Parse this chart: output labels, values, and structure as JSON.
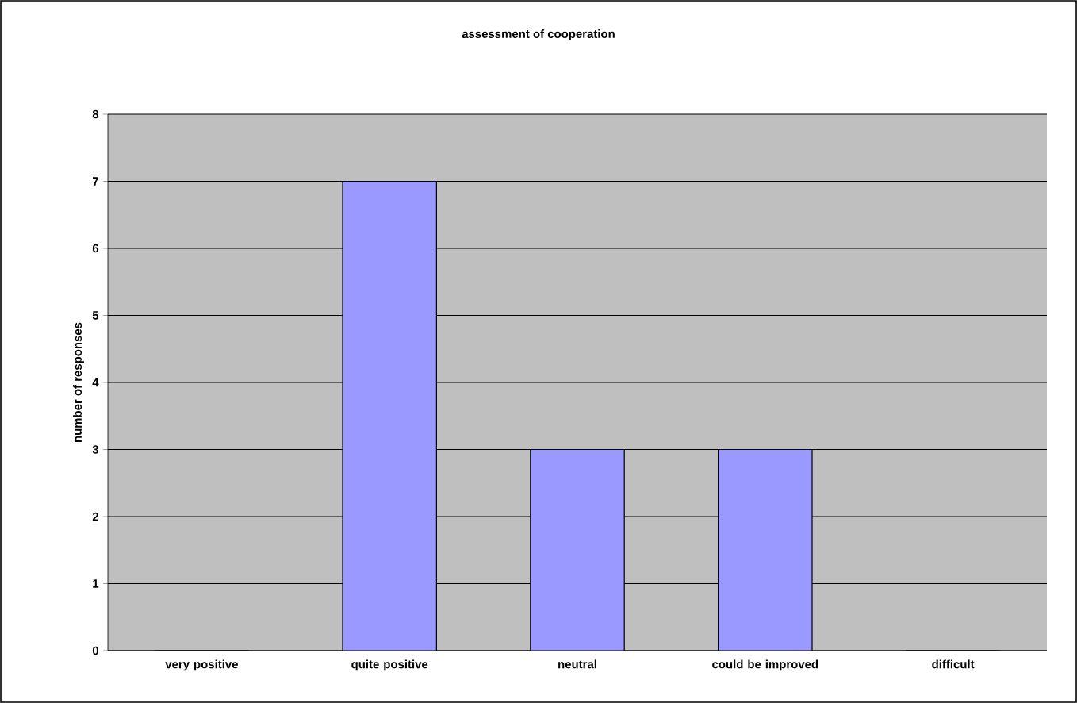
{
  "chart_data": {
    "type": "bar",
    "title": "assessment of cooperation",
    "ylabel": "number of responses",
    "categories": [
      "very positive",
      "quite positive",
      "neutral",
      "could be improved",
      "difficult"
    ],
    "values": [
      0,
      7,
      3,
      3,
      0
    ],
    "color": "#9999ff",
    "ylim": [
      0,
      8
    ],
    "yticks": [
      0,
      1,
      2,
      3,
      4,
      5,
      6,
      7,
      8
    ],
    "grid": "y"
  }
}
